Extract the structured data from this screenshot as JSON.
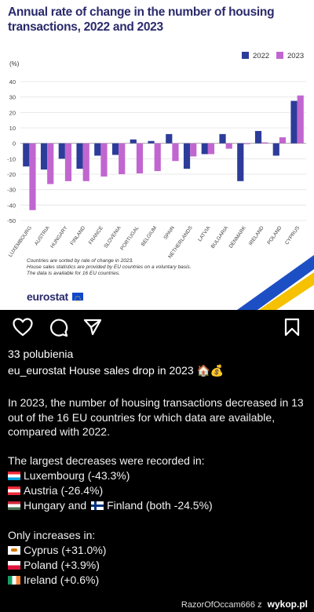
{
  "chart_data": {
    "type": "bar",
    "title": "Annual rate of change in the number of housing transactions, 2022 and 2023",
    "ylabel": "(%)",
    "ylim": [
      -50,
      40
    ],
    "yticks": [
      40,
      30,
      20,
      10,
      0,
      -10,
      -20,
      -30,
      -40,
      -50
    ],
    "grid": true,
    "legend_position": "top-right",
    "categories": [
      "LUXEMBOURG",
      "AUSTRIA",
      "HUNGARY",
      "FINLAND",
      "FRANCE",
      "SLOVENIA",
      "PORTUGAL",
      "BELGIUM",
      "SPAIN",
      "NETHERLANDS",
      "LATVIA",
      "BULGARIA",
      "DENMARK",
      "IRELAND",
      "POLAND",
      "CYPRUS"
    ],
    "series": [
      {
        "name": "2022",
        "color": "#2d3c9a",
        "values": [
          -15.0,
          -17.0,
          -10.0,
          -16.5,
          -8.0,
          -7.5,
          2.5,
          1.5,
          6.0,
          -16.5,
          -7.0,
          6.0,
          -24.5,
          8.0,
          -8.0,
          27.5
        ]
      },
      {
        "name": "2023",
        "color": "#c166d0",
        "values": [
          -43.3,
          -26.4,
          -24.5,
          -24.5,
          -21.5,
          -20.0,
          -19.5,
          -18.0,
          -11.5,
          -8.5,
          -7.0,
          -3.5,
          -0.5,
          0.6,
          3.9,
          31.0
        ]
      }
    ]
  },
  "notes": [
    "Countries are sorted by rate of change in 2023.",
    "House sales statistics are provided by EU countries on a voluntary basis.",
    "The data is available for 16 EU countries."
  ],
  "logo_text": "eurostat",
  "post": {
    "likes": "33 polubienia",
    "username": "eu_eurostat",
    "caption_title": "House sales drop in 2023 🏠💰",
    "paragraph1": "In 2023, the number of housing transactions decreased in 13 out of the 16 EU countries for which data are available, compared with 2022.",
    "decreases_heading": "The largest decreases were recorded in:",
    "decreases": [
      {
        "text": "Luxembourg (-43.3%)",
        "flag": "luxembourg"
      },
      {
        "text": "Austria (-26.4%)",
        "flag": "austria"
      },
      {
        "text": "Hungary and",
        "flag": "hungary",
        "text2": "Finland (both -24.5%)",
        "flag2": "finland"
      }
    ],
    "increases_heading": "Only increases in:",
    "increases": [
      {
        "text": "Cyprus (+31.0%)",
        "flag": "cyprus"
      },
      {
        "text": "Poland (+3.9%)",
        "flag": "poland"
      },
      {
        "text": "Ireland (+0.6%)",
        "flag": "ireland"
      }
    ]
  },
  "watermark": {
    "user": "RazorOfOccam666",
    "sep": "z",
    "site": "wykop.pl"
  }
}
